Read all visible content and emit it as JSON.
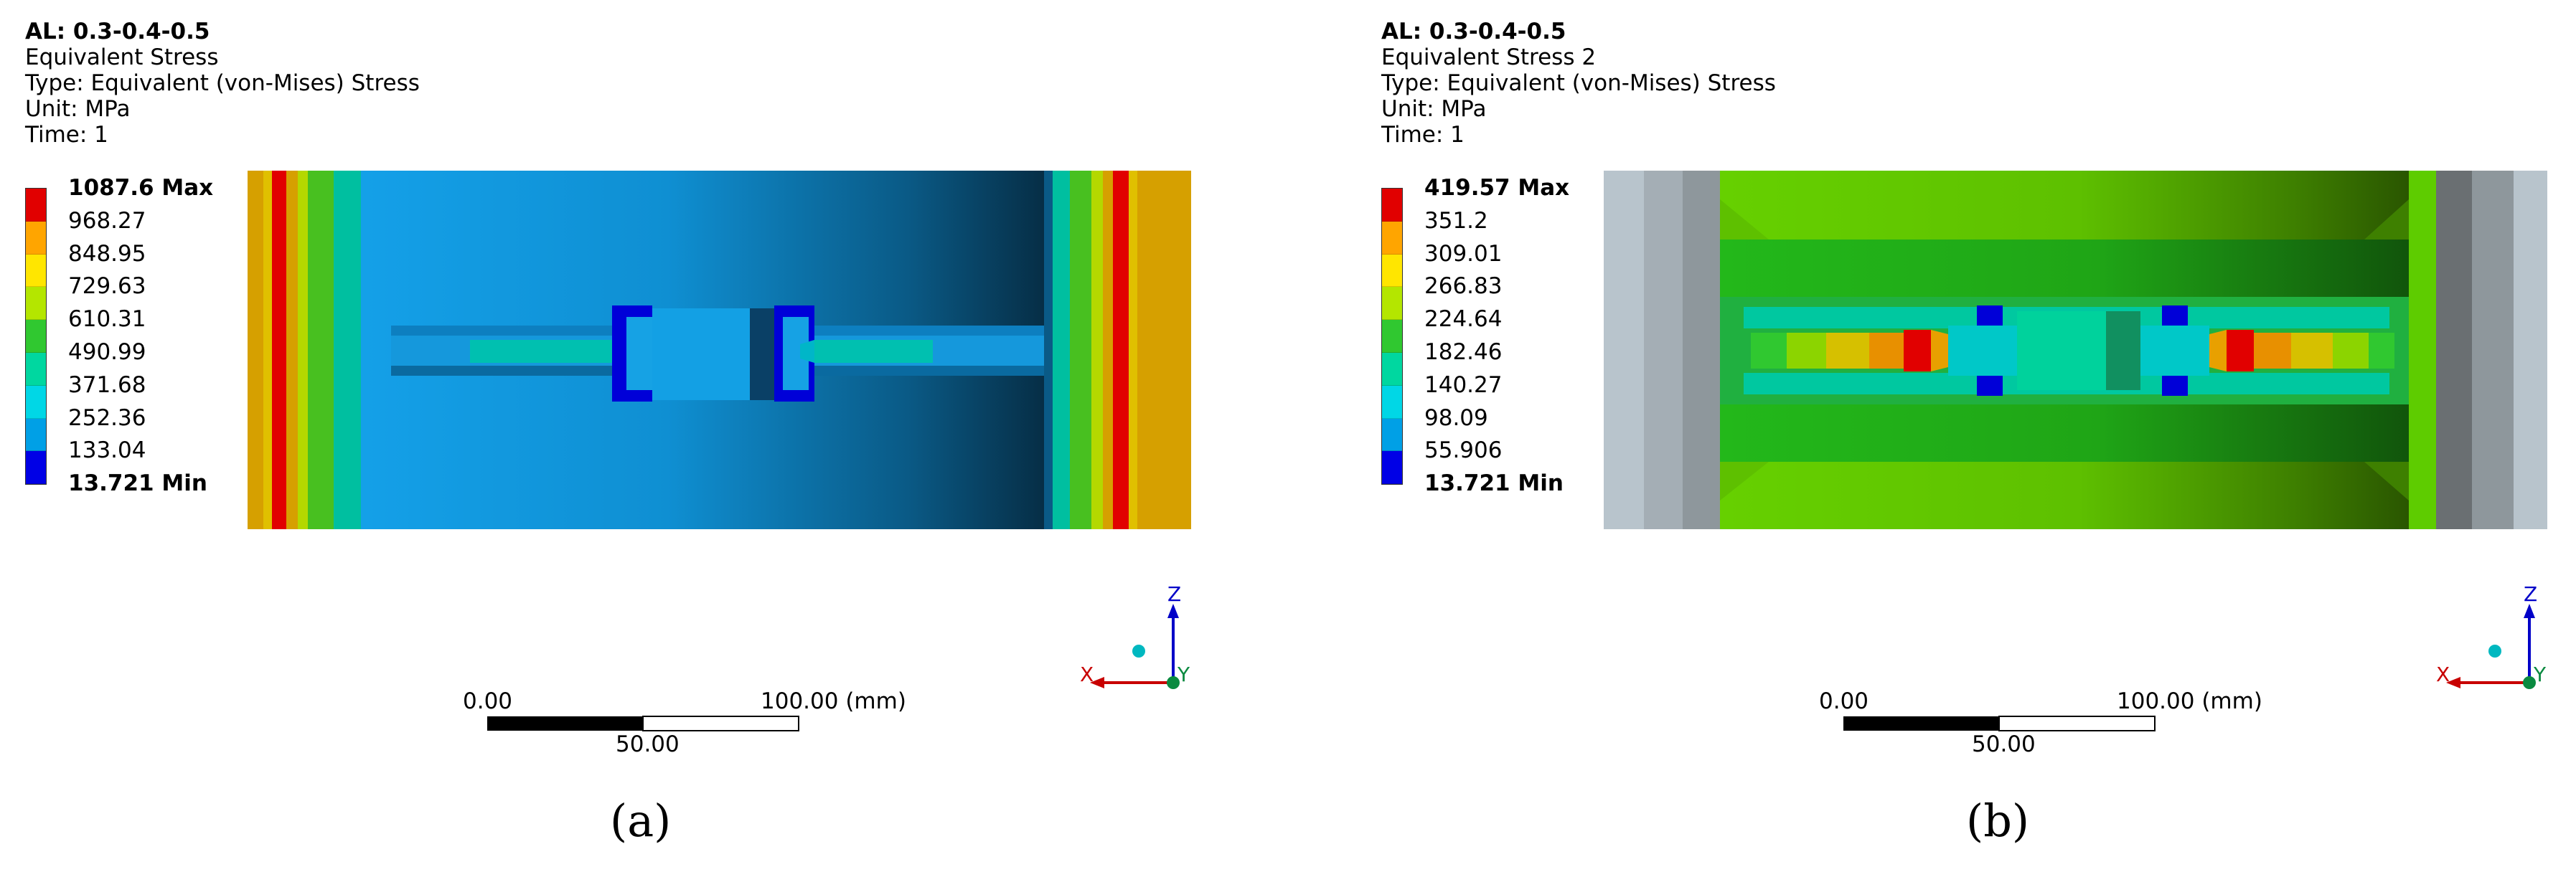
{
  "panels": [
    {
      "header": {
        "al": "AL: 0.3-0.4-0.5",
        "name": "Equivalent Stress",
        "type": "Type: Equivalent (von-Mises) Stress",
        "unit": "Unit: MPa",
        "time": "Time: 1"
      },
      "legend": {
        "labels": [
          "1087.6 Max",
          "968.27",
          "848.95",
          "729.63",
          "610.31",
          "490.99",
          "371.68",
          "252.36",
          "133.04",
          "13.721 Min"
        ],
        "colors": [
          "#e10000",
          "#ffa500",
          "#ffe600",
          "#b4e600",
          "#30c830",
          "#00d7a0",
          "#00d7e6",
          "#00a0e6",
          "#0000e6"
        ]
      },
      "scale": {
        "left": "0.00",
        "mid": "50.00",
        "right": "100.00 (mm)"
      },
      "triad": {
        "x": "X",
        "y": "Y",
        "z": "Z",
        "x_icon": "x-axis-arrow-icon",
        "z_icon": "z-axis-arrow-icon"
      },
      "caption": "(a)"
    },
    {
      "header": {
        "al": "AL: 0.3-0.4-0.5",
        "name": "Equivalent Stress 2",
        "type": "Type: Equivalent (von-Mises) Stress",
        "unit": "Unit: MPa",
        "time": "Time: 1"
      },
      "legend": {
        "labels": [
          "419.57 Max",
          "351.2",
          "309.01",
          "266.83",
          "224.64",
          "182.46",
          "140.27",
          "98.09",
          "55.906",
          "13.721 Min"
        ],
        "colors": [
          "#e10000",
          "#ffa500",
          "#ffe600",
          "#b4e600",
          "#30c830",
          "#00d7a0",
          "#00d7e6",
          "#00a0e6",
          "#0000e6"
        ]
      },
      "scale": {
        "left": "0.00",
        "mid": "50.00",
        "right": "100.00 (mm)"
      },
      "triad": {
        "x": "X",
        "y": "Y",
        "z": "Z",
        "x_icon": "x-axis-arrow-icon",
        "z_icon": "z-axis-arrow-icon"
      },
      "caption": "(b)"
    }
  ]
}
